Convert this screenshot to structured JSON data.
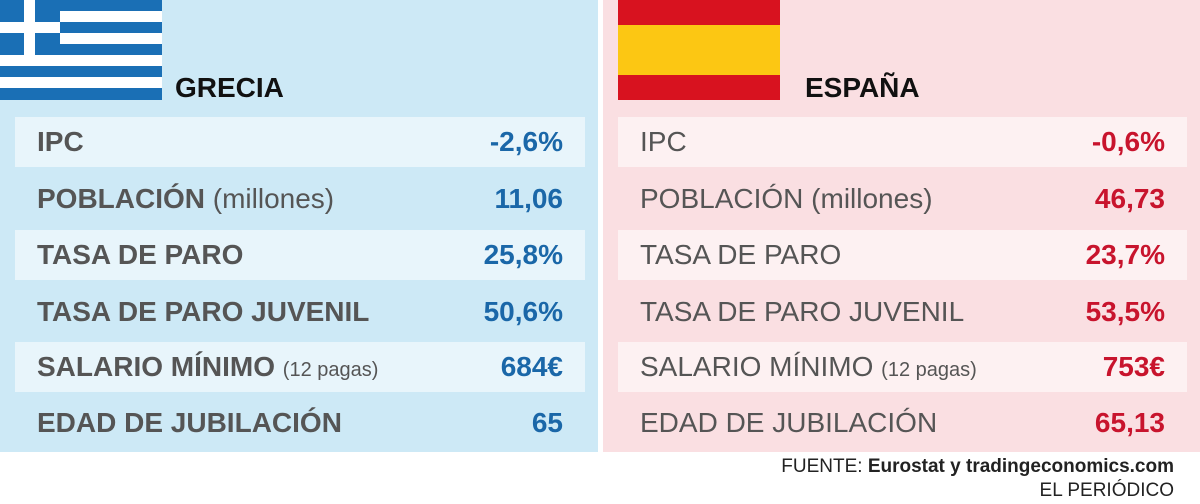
{
  "panels": [
    {
      "title": "GRECIA",
      "rows": [
        {
          "label": "IPC",
          "value": "-2,6%"
        },
        {
          "label": "POBLACIÓN",
          "note": "(millones)",
          "value": "11,06"
        },
        {
          "label": "TASA DE PARO",
          "value": "25,8%"
        },
        {
          "label": "TASA DE PARO JUVENIL",
          "value": "50,6%"
        },
        {
          "label": "SALARIO MÍNIMO",
          "note": "(12 pagas)",
          "value": "684€"
        },
        {
          "label": "EDAD DE JUBILACIÓN",
          "value": "65"
        }
      ]
    },
    {
      "title": "ESPAÑA",
      "rows": [
        {
          "label": "IPC",
          "value": "-0,6%"
        },
        {
          "label": "POBLACIÓN",
          "note": "(millones)",
          "value": "46,73"
        },
        {
          "label": "TASA DE PARO",
          "value": "23,7%"
        },
        {
          "label": "TASA DE PARO JUVENIL",
          "value": "53,5%"
        },
        {
          "label": "SALARIO MÍNIMO",
          "note": "(12 pagas)",
          "value": "753€"
        },
        {
          "label": "EDAD DE JUBILACIÓN",
          "value": "65,13"
        }
      ]
    }
  ],
  "footer": {
    "source_prefix": "FUENTE:",
    "source": "Eurostat y tradingeconomics.com",
    "credit": "EL PERIÓDICO"
  }
}
